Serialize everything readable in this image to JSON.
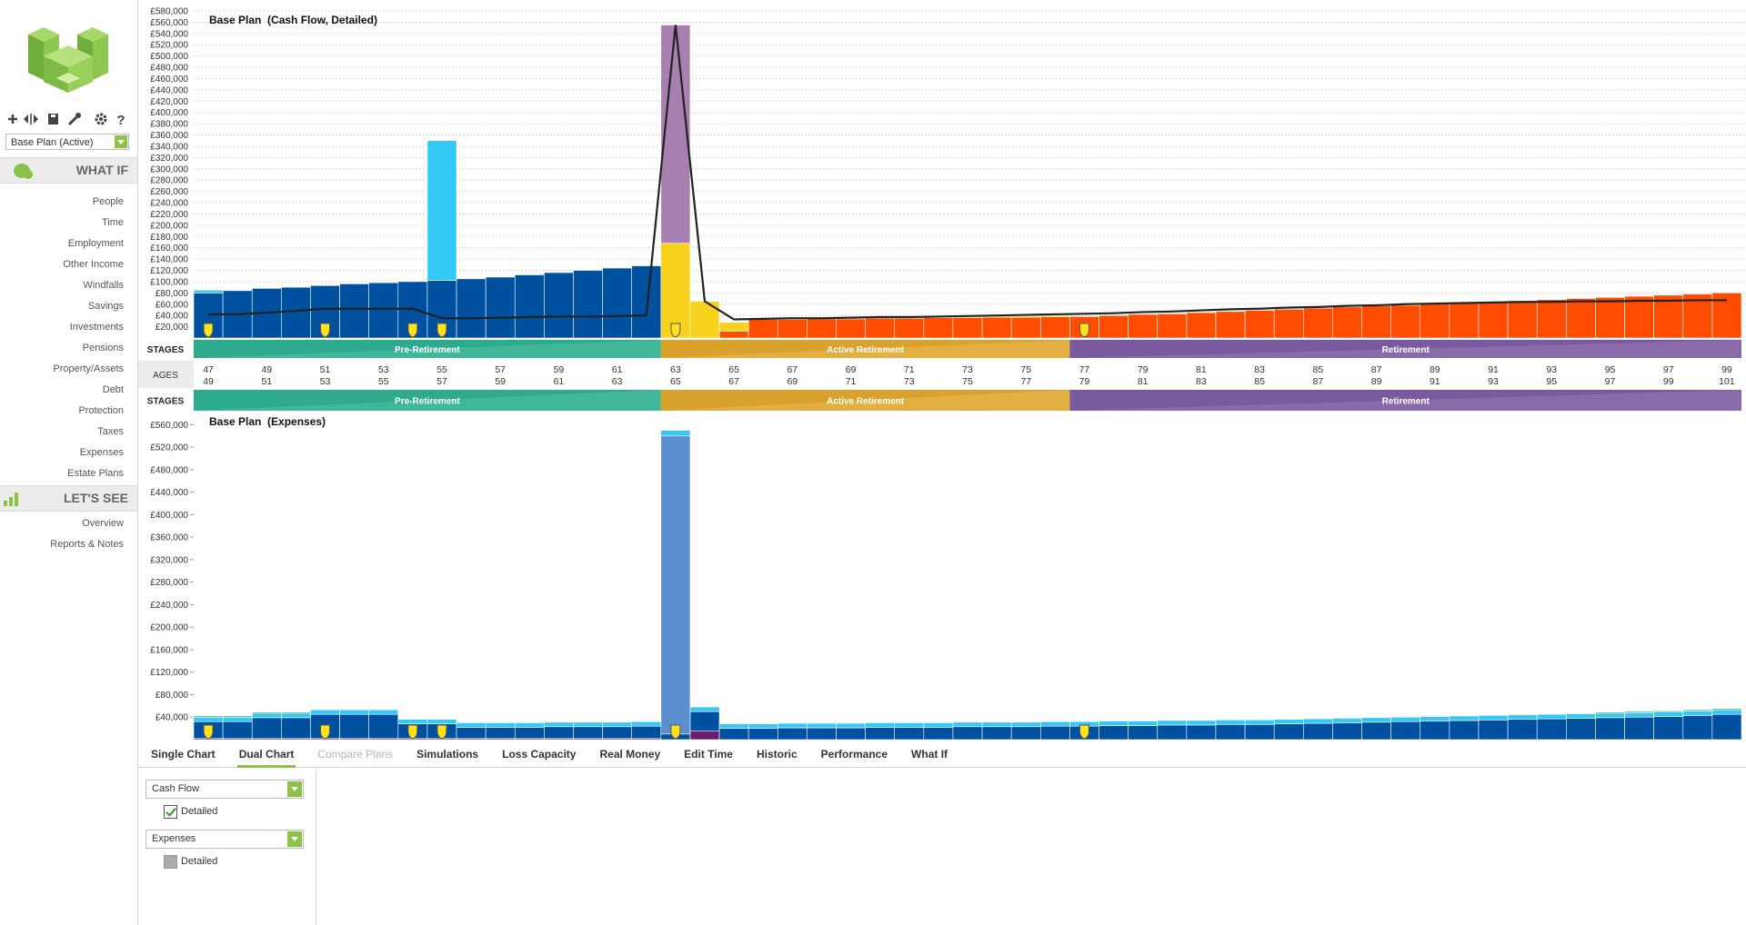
{
  "sidebar": {
    "plan_select": "Base Plan (Active)",
    "what_if": {
      "title": "WHAT IF",
      "items": [
        "People",
        "Time",
        "Employment",
        "Other Income",
        "Windfalls",
        "Savings",
        "Investments",
        "Pensions",
        "Property/Assets",
        "Debt",
        "Protection",
        "Taxes",
        "Expenses",
        "Estate Plans"
      ]
    },
    "lets_see": {
      "title": "LET'S SEE",
      "items": [
        "Overview",
        "Reports & Notes"
      ]
    }
  },
  "tabs": [
    "Single Chart",
    "Dual Chart",
    "Compare Plans",
    "Simulations",
    "Loss Capacity",
    "Real Money",
    "Edit Time",
    "Historic",
    "Performance",
    "What If"
  ],
  "active_tab": 1,
  "disabled_tabs": [
    2
  ],
  "panel": {
    "selects": [
      {
        "label": "Cash Flow",
        "option": "Detailed",
        "checked": true
      },
      {
        "label": "Expenses",
        "option": "Detailed",
        "checked": false
      }
    ]
  },
  "stages": {
    "label": "STAGES",
    "names": [
      "Pre-Retirement",
      "Active Retirement",
      "Retirement"
    ]
  },
  "ages_label": "AGES",
  "chart_data": [
    {
      "type": "bar",
      "stacked": true,
      "title": "Base Plan  (Cash Flow, Detailed)",
      "grid": true,
      "categories": [
        47,
        null,
        49,
        null,
        51,
        null,
        53,
        null,
        55,
        null,
        57,
        null,
        59,
        null,
        61,
        null,
        63,
        null,
        65,
        null,
        67,
        null,
        69,
        null,
        71,
        null,
        73,
        null,
        75,
        null,
        77,
        null,
        79,
        null,
        81,
        null,
        83,
        null,
        85,
        null,
        87,
        null,
        89,
        null,
        91,
        null,
        93,
        null,
        95,
        null,
        97,
        null,
        99
      ],
      "categories_2": [
        49,
        null,
        51,
        null,
        53,
        null,
        55,
        null,
        57,
        null,
        59,
        null,
        61,
        null,
        63,
        null,
        65,
        null,
        67,
        null,
        69,
        null,
        71,
        null,
        73,
        null,
        75,
        null,
        77,
        null,
        79,
        null,
        81,
        null,
        83,
        null,
        85,
        null,
        87,
        null,
        89,
        null,
        91,
        null,
        93,
        null,
        95,
        null,
        97,
        null,
        99,
        null,
        101
      ],
      "ylim": [
        0,
        580000
      ],
      "yticks": [
        {
          "value": 20000,
          "label": "£20,000"
        },
        {
          "value": 40000,
          "label": "£40,000"
        },
        {
          "value": 60000,
          "label": "£60,000"
        },
        {
          "value": 80000,
          "label": "£80,000"
        },
        {
          "value": 100000,
          "label": "£100,000"
        },
        {
          "value": 120000,
          "label": "£120,000"
        },
        {
          "value": 140000,
          "label": "£140,000"
        },
        {
          "value": 160000,
          "label": "£160,000"
        },
        {
          "value": 180000,
          "label": "£180,000"
        },
        {
          "value": 200000,
          "label": "£200,000"
        },
        {
          "value": 220000,
          "label": "£220,000"
        },
        {
          "value": 240000,
          "label": "£240,000"
        },
        {
          "value": 260000,
          "label": "£260,000"
        },
        {
          "value": 280000,
          "label": "£280,000"
        },
        {
          "value": 300000,
          "label": "£300,000"
        },
        {
          "value": 320000,
          "label": "£320,000"
        },
        {
          "value": 340000,
          "label": "£340,000"
        },
        {
          "value": 360000,
          "label": "£360,000"
        },
        {
          "value": 380000,
          "label": "£380,000"
        },
        {
          "value": 400000,
          "label": "£400,000"
        },
        {
          "value": 420000,
          "label": "£420,000"
        },
        {
          "value": 440000,
          "label": "£440,000"
        },
        {
          "value": 460000,
          "label": "£460,000"
        },
        {
          "value": 480000,
          "label": "£480,000"
        },
        {
          "value": 500000,
          "label": "£500,000"
        },
        {
          "value": 520000,
          "label": "£520,000"
        },
        {
          "value": 540000,
          "label": "£540,000"
        },
        {
          "value": 560000,
          "label": "£560,000"
        },
        {
          "value": 580000,
          "label": "£580,000"
        }
      ],
      "series": [
        {
          "color": "#0050a0",
          "values": [
            80000,
            84000,
            88000,
            90000,
            93000,
            96000,
            98000,
            100000,
            102000,
            105000,
            108000,
            112000,
            116000,
            120000,
            124000,
            128000,
            null,
            null,
            null,
            null,
            null,
            null,
            null,
            null,
            null,
            null,
            null,
            null,
            null,
            null,
            null,
            null,
            null,
            null,
            null,
            null,
            null,
            null,
            null,
            null,
            null,
            null,
            null,
            null,
            null,
            null,
            null,
            null,
            null,
            null,
            null,
            null,
            null
          ]
        },
        {
          "color": "#33c8f5",
          "values": [
            5000,
            null,
            null,
            null,
            null,
            null,
            null,
            null,
            248000,
            null,
            null,
            null,
            null,
            null,
            null,
            null,
            null,
            null,
            null,
            null,
            null,
            null,
            null,
            null,
            null,
            null,
            null,
            null,
            null,
            null,
            null,
            null,
            null,
            null,
            null,
            null,
            null,
            null,
            null,
            null,
            null,
            null,
            null,
            null,
            null,
            null,
            null,
            null,
            null,
            null,
            null,
            null,
            null
          ]
        },
        {
          "color": "#ff4d00",
          "values": [
            null,
            null,
            null,
            null,
            null,
            null,
            null,
            null,
            null,
            null,
            null,
            null,
            null,
            null,
            null,
            null,
            null,
            null,
            12000,
            33000,
            33000,
            34000,
            34000,
            35000,
            35000,
            36000,
            36000,
            37000,
            37000,
            38000,
            38000,
            40000,
            42000,
            43000,
            45000,
            47000,
            49000,
            51000,
            53000,
            55000,
            57000,
            58000,
            60000,
            62000,
            64000,
            66000,
            68000,
            70000,
            72000,
            74000,
            76000,
            78000,
            80000
          ]
        },
        {
          "color": "#f7d21e",
          "values": [
            null,
            null,
            null,
            null,
            null,
            null,
            null,
            null,
            null,
            null,
            null,
            null,
            null,
            null,
            null,
            null,
            168000,
            65000,
            16000,
            2000,
            2000,
            2000,
            2000,
            2000,
            2000,
            2000,
            2000,
            2000,
            2000,
            2000,
            null,
            null,
            null,
            null,
            null,
            null,
            null,
            null,
            null,
            null,
            null,
            null,
            null,
            null,
            null,
            null,
            null,
            null,
            null,
            null,
            null,
            null,
            null
          ]
        },
        {
          "color": "#a880b0",
          "values": [
            null,
            null,
            null,
            null,
            null,
            null,
            null,
            null,
            null,
            null,
            null,
            null,
            null,
            null,
            null,
            null,
            387000,
            null,
            null,
            null,
            null,
            null,
            null,
            null,
            null,
            null,
            null,
            null,
            null,
            null,
            null,
            null,
            null,
            null,
            null,
            null,
            null,
            null,
            null,
            null,
            null,
            null,
            null,
            null,
            null,
            null,
            null,
            null,
            null,
            null,
            null,
            null,
            null
          ]
        },
        {
          "type": "line",
          "color": "#222222",
          "values": [
            42000,
            42000,
            45000,
            48000,
            52000,
            52000,
            52000,
            52000,
            35000,
            35000,
            36000,
            37000,
            38000,
            38000,
            39000,
            40000,
            555000,
            65000,
            33000,
            34000,
            35000,
            35000,
            36000,
            37000,
            37000,
            38000,
            39000,
            40000,
            41000,
            42000,
            43000,
            44000,
            46000,
            47000,
            49000,
            51000,
            52000,
            54000,
            55000,
            57000,
            58000,
            60000,
            61000,
            62000,
            63000,
            64000,
            64000,
            65000,
            65000,
            66000,
            66000,
            67000,
            67000
          ]
        }
      ]
    },
    {
      "type": "bar",
      "stacked": true,
      "title": "Base Plan  (Expenses)",
      "grid": false,
      "ylim": [
        0,
        580000
      ],
      "yticks": [
        {
          "value": 40000,
          "label": "£40,000"
        },
        {
          "value": 80000,
          "label": "£80,000"
        },
        {
          "value": 120000,
          "label": "£120,000"
        },
        {
          "value": 160000,
          "label": "£160,000"
        },
        {
          "value": 200000,
          "label": "£200,000"
        },
        {
          "value": 240000,
          "label": "£240,000"
        },
        {
          "value": 280000,
          "label": "£280,000"
        },
        {
          "value": 320000,
          "label": "£320,000"
        },
        {
          "value": 360000,
          "label": "£360,000"
        },
        {
          "value": 400000,
          "label": "£400,000"
        },
        {
          "value": 440000,
          "label": "£440,000"
        },
        {
          "value": 480000,
          "label": "£480,000"
        },
        {
          "value": 520000,
          "label": "£520,000"
        },
        {
          "value": 560000,
          "label": "£560,000"
        }
      ],
      "series": [
        {
          "color": "#6a1b6a",
          "values": [
            2000,
            2000,
            2000,
            2000,
            2000,
            2000,
            2000,
            2000,
            2000,
            2000,
            2000,
            2000,
            2000,
            2000,
            2000,
            2000,
            null,
            15000,
            null,
            null,
            null,
            null,
            null,
            null,
            null,
            null,
            null,
            null,
            null,
            null,
            null,
            null,
            null,
            null,
            null,
            null,
            null,
            null,
            null,
            null,
            null,
            null,
            null,
            null,
            null,
            null,
            null,
            null,
            null,
            null,
            null,
            null,
            null
          ]
        },
        {
          "color": "#0050a0",
          "values": [
            30000,
            30000,
            37000,
            37000,
            43000,
            43000,
            43000,
            26000,
            26000,
            20000,
            20000,
            20000,
            21000,
            21000,
            21000,
            22000,
            10000,
            35000,
            20000,
            20000,
            21000,
            21000,
            21000,
            22000,
            22000,
            22000,
            23000,
            23000,
            23000,
            24000,
            24000,
            25000,
            25000,
            26000,
            26000,
            27000,
            27000,
            28000,
            29000,
            30000,
            31000,
            32000,
            33000,
            34000,
            35000,
            36000,
            37000,
            38000,
            39000,
            40000,
            41000,
            43000,
            45000
          ]
        },
        {
          "color": "#5b8fd0",
          "values": [
            null,
            null,
            null,
            null,
            null,
            null,
            null,
            null,
            null,
            null,
            null,
            null,
            null,
            null,
            null,
            null,
            530000,
            null,
            null,
            null,
            null,
            null,
            null,
            null,
            null,
            null,
            null,
            null,
            null,
            null,
            null,
            null,
            null,
            null,
            null,
            null,
            null,
            null,
            null,
            null,
            null,
            null,
            null,
            null,
            null,
            null,
            null,
            null,
            null,
            null,
            null,
            null,
            null
          ]
        },
        {
          "color": "#33c8f5",
          "values": [
            8000,
            8000,
            8000,
            8000,
            8000,
            8000,
            8000,
            8000,
            8000,
            8000,
            8000,
            8000,
            8000,
            8000,
            8000,
            8000,
            10000,
            8000,
            8000,
            8000,
            8000,
            8000,
            8000,
            8000,
            8000,
            8000,
            8000,
            8000,
            8000,
            8000,
            8000,
            8000,
            8000,
            8000,
            8000,
            8000,
            8000,
            8000,
            8000,
            8000,
            8000,
            8000,
            8000,
            8000,
            8000,
            8000,
            8000,
            8000,
            8000,
            8000,
            8000,
            8000,
            8000
          ]
        },
        {
          "color": "#2e9e5a",
          "values": [
            2000,
            2000,
            2000,
            2000,
            null,
            null,
            null,
            null,
            null,
            null,
            null,
            null,
            null,
            null,
            null,
            null,
            null,
            null,
            null,
            null,
            null,
            null,
            null,
            null,
            null,
            null,
            null,
            null,
            null,
            null,
            null,
            null,
            null,
            null,
            null,
            null,
            null,
            null,
            null,
            null,
            null,
            null,
            null,
            null,
            null,
            null,
            null,
            null,
            2000,
            2000,
            2000,
            2000,
            2000
          ]
        }
      ]
    }
  ]
}
